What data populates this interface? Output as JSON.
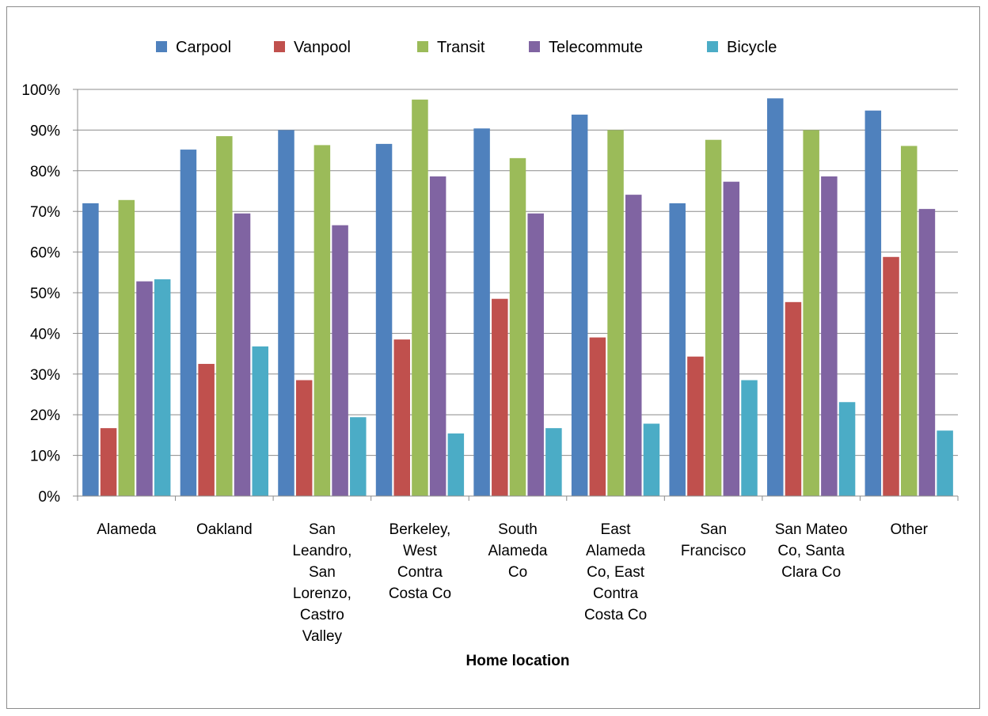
{
  "chart_data": {
    "type": "bar",
    "title": "",
    "xlabel": "Home location",
    "ylabel": "",
    "ylim": [
      0,
      1
    ],
    "yticks": [
      0,
      0.1,
      0.2,
      0.3,
      0.4,
      0.5,
      0.6,
      0.7,
      0.8,
      0.9,
      1.0
    ],
    "ytick_labels": [
      "0%",
      "10%",
      "20%",
      "30%",
      "40%",
      "50%",
      "60%",
      "70%",
      "80%",
      "90%",
      "100%"
    ],
    "grid": true,
    "legend_position": "top",
    "categories": [
      [
        "Alameda"
      ],
      [
        "Oakland"
      ],
      [
        "San",
        "Leandro,",
        "San",
        "Lorenzo,",
        "Castro",
        "Valley"
      ],
      [
        "Berkeley,",
        "West",
        "Contra",
        "Costa Co"
      ],
      [
        "South",
        "Alameda",
        "Co"
      ],
      [
        "East",
        "Alameda",
        "Co, East",
        "Contra",
        "Costa Co"
      ],
      [
        "San",
        "Francisco"
      ],
      [
        "San Mateo",
        "Co, Santa",
        "Clara Co"
      ],
      [
        "Other"
      ]
    ],
    "series": [
      {
        "name": "Carpool",
        "color": "#4F81BD",
        "values": [
          0.72,
          0.852,
          0.9,
          0.866,
          0.904,
          0.938,
          0.72,
          0.978,
          0.948
        ]
      },
      {
        "name": "Vanpool",
        "color": "#C0504D",
        "values": [
          0.167,
          0.325,
          0.285,
          0.385,
          0.485,
          0.39,
          0.343,
          0.477,
          0.588
        ]
      },
      {
        "name": "Transit",
        "color": "#9BBB59",
        "values": [
          0.728,
          0.885,
          0.863,
          0.975,
          0.831,
          0.9,
          0.876,
          0.9,
          0.861
        ]
      },
      {
        "name": "Telecommute",
        "color": "#8064A2",
        "values": [
          0.528,
          0.695,
          0.666,
          0.786,
          0.695,
          0.741,
          0.773,
          0.786,
          0.706
        ]
      },
      {
        "name": "Bicycle",
        "color": "#4BACC6",
        "values": [
          0.533,
          0.368,
          0.194,
          0.154,
          0.167,
          0.178,
          0.285,
          0.231,
          0.161
        ]
      }
    ]
  }
}
